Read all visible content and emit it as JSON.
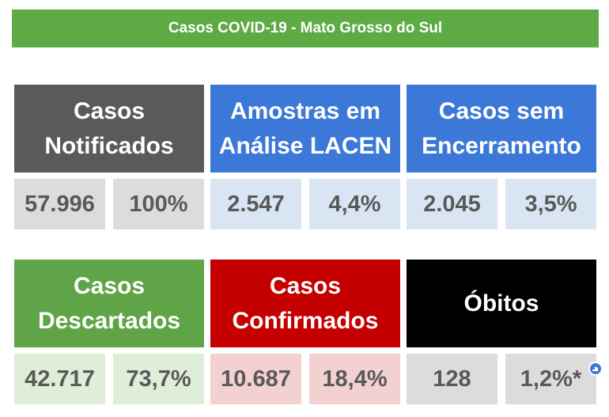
{
  "header": {
    "title": "Casos COVID-19 - Mato Grosso do Sul"
  },
  "tiles": [
    {
      "label": "Casos Notificados",
      "value": "57.996",
      "percent": "100%"
    },
    {
      "label": "Amostras em Análise LACEN",
      "value": "2.547",
      "percent": "4,4%"
    },
    {
      "label": "Casos sem Encerramento",
      "value": "2.045",
      "percent": "3,5%"
    },
    {
      "label": "Casos Descartados",
      "value": "42.717",
      "percent": "73,7%"
    },
    {
      "label": "Casos Confirmados",
      "value": "10.687",
      "percent": "18,4%"
    },
    {
      "label": "Óbitos",
      "value": "128",
      "percent": "1,2%*"
    }
  ]
}
